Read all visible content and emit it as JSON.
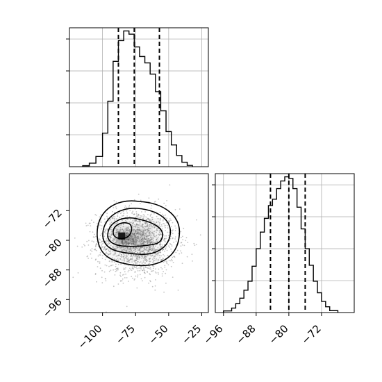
{
  "chart_data": [
    {
      "type": "histogram",
      "panel": "marginal-x",
      "xlim": [
        -125,
        -20
      ],
      "grid": true,
      "quantile_lines": [
        -88,
        -76,
        -57
      ],
      "bins": [
        {
          "x0": -115,
          "x1": -110,
          "count": 3
        },
        {
          "x0": -110,
          "x1": -105,
          "count": 11
        },
        {
          "x0": -105,
          "x1": -100,
          "count": 32
        },
        {
          "x0": -100,
          "x1": -96,
          "count": 105
        },
        {
          "x0": -96,
          "x1": -92,
          "count": 205
        },
        {
          "x0": -92,
          "x1": -88,
          "count": 330
        },
        {
          "x0": -88,
          "x1": -84,
          "count": 395
        },
        {
          "x0": -84,
          "x1": -80,
          "count": 425
        },
        {
          "x0": -80,
          "x1": -76,
          "count": 415
        },
        {
          "x0": -76,
          "x1": -72,
          "count": 375
        },
        {
          "x0": -72,
          "x1": -68,
          "count": 345
        },
        {
          "x0": -68,
          "x1": -64,
          "count": 325
        },
        {
          "x0": -64,
          "x1": -60,
          "count": 290
        },
        {
          "x0": -60,
          "x1": -56,
          "count": 235
        },
        {
          "x0": -56,
          "x1": -52,
          "count": 175
        },
        {
          "x0": -52,
          "x1": -48,
          "count": 110
        },
        {
          "x0": -48,
          "x1": -44,
          "count": 68
        },
        {
          "x0": -44,
          "x1": -40,
          "count": 35
        },
        {
          "x0": -40,
          "x1": -36,
          "count": 14
        },
        {
          "x0": -36,
          "x1": -32,
          "count": 4
        }
      ],
      "ylim": [
        0,
        435
      ]
    },
    {
      "type": "scatter",
      "panel": "joint",
      "xlim": [
        -125,
        -20
      ],
      "ylim": [
        -99.5,
        -62
      ],
      "xticks": [
        "−100",
        "−75",
        "−50",
        "−25"
      ],
      "xtick_values": [
        -100,
        -75,
        -50,
        -25
      ],
      "yticks": [
        "−72",
        "−80",
        "−88",
        "−96"
      ],
      "ytick_values": [
        -72,
        -80,
        -88,
        -96
      ],
      "density_peak": {
        "x": -85,
        "y": -79
      },
      "contour_levels": 4,
      "points_shown_as_cloud": true
    },
    {
      "type": "histogram",
      "panel": "marginal-y",
      "xlim": [
        -98,
        -64
      ],
      "grid": true,
      "xticks": [
        "−96",
        "−88",
        "−80",
        "−72"
      ],
      "xtick_values": [
        -96,
        -88,
        -80,
        -72
      ],
      "quantile_lines": [
        -84.5,
        -80,
        -76
      ],
      "bins": [
        {
          "x0": -96,
          "x1": -94,
          "count": 5
        },
        {
          "x0": -94,
          "x1": -93,
          "count": 14
        },
        {
          "x0": -93,
          "x1": -92,
          "count": 28
        },
        {
          "x0": -92,
          "x1": -91,
          "count": 45
        },
        {
          "x0": -91,
          "x1": -90,
          "count": 70
        },
        {
          "x0": -90,
          "x1": -89,
          "count": 98
        },
        {
          "x0": -89,
          "x1": -88,
          "count": 145
        },
        {
          "x0": -88,
          "x1": -87,
          "count": 200
        },
        {
          "x0": -87,
          "x1": -86,
          "count": 252
        },
        {
          "x0": -86,
          "x1": -85,
          "count": 295
        },
        {
          "x0": -85,
          "x1": -84,
          "count": 335
        },
        {
          "x0": -84,
          "x1": -83,
          "count": 355
        },
        {
          "x0": -83,
          "x1": -82,
          "count": 388
        },
        {
          "x0": -82,
          "x1": -81,
          "count": 412
        },
        {
          "x0": -81,
          "x1": -80,
          "count": 425
        },
        {
          "x0": -80,
          "x1": -79,
          "count": 420
        },
        {
          "x0": -79,
          "x1": -78,
          "count": 388
        },
        {
          "x0": -78,
          "x1": -77,
          "count": 330
        },
        {
          "x0": -77,
          "x1": -76,
          "count": 262
        },
        {
          "x0": -76,
          "x1": -75,
          "count": 200
        },
        {
          "x0": -75,
          "x1": -74,
          "count": 148
        },
        {
          "x0": -74,
          "x1": -73,
          "count": 98
        },
        {
          "x0": -73,
          "x1": -72,
          "count": 62
        },
        {
          "x0": -72,
          "x1": -71,
          "count": 35
        },
        {
          "x0": -71,
          "x1": -70,
          "count": 18
        },
        {
          "x0": -70,
          "x1": -68,
          "count": 6
        }
      ],
      "ylim": [
        0,
        435
      ]
    }
  ],
  "colors": {
    "line": "#000000",
    "grid": "#b0b0b0",
    "scatter": "#7f7f7f",
    "density_dark": "#1a1a1a"
  }
}
